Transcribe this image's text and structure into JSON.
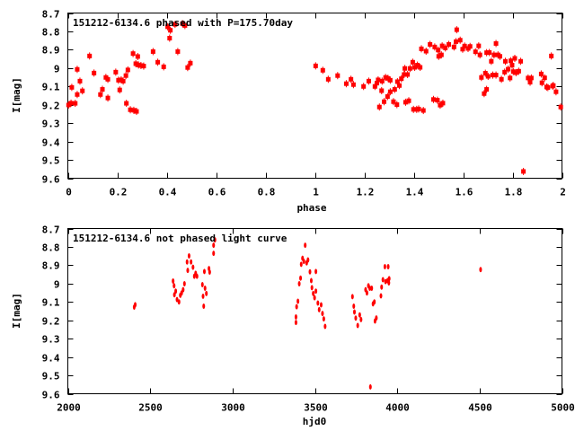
{
  "colors": {
    "points": "#ff0000",
    "axes": "#000000"
  },
  "chart_data": [
    {
      "type": "scatter",
      "title": "151212-6134.6 phased with P=175.70day",
      "xlabel": "phase",
      "ylabel": "I[mag]",
      "xlim": [
        0,
        2
      ],
      "ylim": [
        9.6,
        8.7
      ],
      "y_inverted": true,
      "grid": false,
      "xticks": [
        "0",
        "0.2",
        "0.4",
        "0.6",
        "0.8",
        "1",
        "1.2",
        "1.4",
        "1.6",
        "1.8",
        "2"
      ],
      "xtick_values": [
        0,
        0.2,
        0.4,
        0.6,
        0.8,
        1,
        1.2,
        1.4,
        1.6,
        1.8,
        2
      ],
      "yticks": [
        "8.7",
        "8.8",
        "8.9",
        "9",
        "9.1",
        "9.2",
        "9.3",
        "9.4",
        "9.5",
        "9.6"
      ],
      "ytick_values": [
        8.7,
        8.8,
        8.9,
        9.0,
        9.1,
        9.2,
        9.3,
        9.4,
        9.5,
        9.6
      ],
      "marker": "square-with-errorbar",
      "points": [
        [
          0.003,
          9.201
        ],
        [
          0.013,
          9.191
        ],
        [
          0.016,
          9.105
        ],
        [
          0.03,
          9.192
        ],
        [
          0.038,
          9.144
        ],
        [
          0.038,
          9.007
        ],
        [
          0.049,
          9.071
        ],
        [
          0.059,
          9.124
        ],
        [
          0.088,
          8.934
        ],
        [
          0.106,
          9.027
        ],
        [
          0.132,
          9.144
        ],
        [
          0.14,
          9.116
        ],
        [
          0.154,
          9.051
        ],
        [
          0.162,
          9.163
        ],
        [
          0.162,
          9.061
        ],
        [
          0.194,
          9.022
        ],
        [
          0.205,
          9.066
        ],
        [
          0.21,
          9.119
        ],
        [
          0.216,
          9.064
        ],
        [
          0.224,
          9.071
        ],
        [
          0.235,
          9.041
        ],
        [
          0.237,
          9.192
        ],
        [
          0.243,
          9.01
        ],
        [
          0.253,
          9.227
        ],
        [
          0.264,
          8.921
        ],
        [
          0.267,
          9.23
        ],
        [
          0.275,
          8.976
        ],
        [
          0.278,
          9.236
        ],
        [
          0.283,
          8.937
        ],
        [
          0.286,
          8.983
        ],
        [
          0.296,
          8.986
        ],
        [
          0.307,
          8.989
        ],
        [
          0.345,
          8.91
        ],
        [
          0.364,
          8.968
        ],
        [
          0.388,
          8.993
        ],
        [
          0.404,
          8.775
        ],
        [
          0.412,
          8.837
        ],
        [
          0.415,
          8.794
        ],
        [
          0.434,
          8.762
        ],
        [
          0.445,
          8.91
        ],
        [
          0.464,
          8.758
        ],
        [
          0.474,
          8.768
        ],
        [
          0.485,
          8.997
        ],
        [
          0.496,
          8.973
        ],
        [
          1.003,
          8.988
        ],
        [
          1.032,
          9.012
        ],
        [
          1.054,
          9.061
        ],
        [
          1.092,
          9.041
        ],
        [
          1.127,
          9.085
        ],
        [
          1.146,
          9.061
        ],
        [
          1.156,
          9.09
        ],
        [
          1.197,
          9.1
        ],
        [
          1.218,
          9.071
        ],
        [
          1.243,
          9.1
        ],
        [
          1.251,
          9.082
        ],
        [
          1.256,
          9.064
        ],
        [
          1.261,
          9.212
        ],
        [
          1.27,
          9.123
        ],
        [
          1.272,
          9.071
        ],
        [
          1.28,
          9.183
        ],
        [
          1.286,
          9.051
        ],
        [
          1.294,
          9.155
        ],
        [
          1.296,
          9.056
        ],
        [
          1.305,
          9.066
        ],
        [
          1.305,
          9.129
        ],
        [
          1.318,
          9.183
        ],
        [
          1.323,
          9.116
        ],
        [
          1.332,
          9.199
        ],
        [
          1.334,
          9.074
        ],
        [
          1.342,
          9.095
        ],
        [
          1.35,
          9.058
        ],
        [
          1.361,
          9.035
        ],
        [
          1.364,
          9.002
        ],
        [
          1.367,
          9.186
        ],
        [
          1.375,
          9.035
        ],
        [
          1.38,
          9.178
        ],
        [
          1.385,
          9.002
        ],
        [
          1.396,
          8.968
        ],
        [
          1.399,
          9.225
        ],
        [
          1.404,
          8.996
        ],
        [
          1.412,
          9.225
        ],
        [
          1.415,
          8.984
        ],
        [
          1.42,
          9.223
        ],
        [
          1.426,
          8.996
        ],
        [
          1.431,
          8.895
        ],
        [
          1.439,
          9.231
        ],
        [
          1.45,
          8.908
        ],
        [
          1.466,
          8.871
        ],
        [
          1.48,
          9.171
        ],
        [
          1.485,
          8.885
        ],
        [
          1.496,
          9.175
        ],
        [
          1.499,
          8.902
        ],
        [
          1.501,
          8.936
        ],
        [
          1.512,
          8.928
        ],
        [
          1.507,
          9.202
        ],
        [
          1.515,
          8.879
        ],
        [
          1.518,
          9.191
        ],
        [
          1.528,
          8.89
        ],
        [
          1.542,
          8.871
        ],
        [
          1.563,
          8.885
        ],
        [
          1.571,
          8.856
        ],
        [
          1.574,
          8.791
        ],
        [
          1.588,
          8.848
        ],
        [
          1.598,
          8.897
        ],
        [
          1.606,
          8.88
        ],
        [
          1.62,
          8.893
        ],
        [
          1.628,
          8.882
        ],
        [
          1.65,
          8.911
        ],
        [
          1.663,
          8.879
        ],
        [
          1.668,
          8.928
        ],
        [
          1.674,
          9.051
        ],
        [
          1.685,
          9.139
        ],
        [
          1.69,
          9.028
        ],
        [
          1.695,
          8.916
        ],
        [
          1.695,
          9.116
        ],
        [
          1.701,
          9.045
        ],
        [
          1.706,
          8.915
        ],
        [
          1.714,
          8.963
        ],
        [
          1.72,
          9.038
        ],
        [
          1.725,
          8.928
        ],
        [
          1.733,
          8.866
        ],
        [
          1.733,
          9.038
        ],
        [
          1.741,
          8.928
        ],
        [
          1.749,
          8.936
        ],
        [
          1.755,
          9.061
        ],
        [
          1.768,
          9.022
        ],
        [
          1.771,
          8.963
        ],
        [
          1.782,
          9.006
        ],
        [
          1.79,
          9.054
        ],
        [
          1.793,
          8.96
        ],
        [
          1.798,
          8.984
        ],
        [
          1.803,
          9.019
        ],
        [
          1.809,
          8.947
        ],
        [
          1.814,
          9.025
        ],
        [
          1.825,
          9.017
        ],
        [
          1.833,
          8.963
        ],
        [
          1.844,
          9.563
        ],
        [
          1.863,
          9.054
        ],
        [
          1.871,
          9.077
        ],
        [
          1.876,
          9.054
        ],
        [
          1.916,
          9.032
        ],
        [
          1.919,
          9.08
        ],
        [
          1.93,
          9.053
        ],
        [
          1.938,
          9.103
        ],
        [
          1.943,
          9.106
        ],
        [
          1.957,
          8.934
        ],
        [
          1.962,
          9.098
        ],
        [
          1.965,
          9.095
        ],
        [
          1.976,
          9.129
        ],
        [
          1.995,
          9.212
        ]
      ]
    },
    {
      "type": "scatter",
      "title": "151212-6134.6 not phased light curve",
      "xlabel": "hjd0",
      "ylabel": "I[mag]",
      "xlim": [
        2000,
        5000
      ],
      "ylim": [
        9.6,
        8.7
      ],
      "y_inverted": true,
      "grid": false,
      "xticks": [
        "2000",
        "2500",
        "3000",
        "3500",
        "4000",
        "4500",
        "5000"
      ],
      "xtick_values": [
        2000,
        2500,
        3000,
        3500,
        4000,
        4500,
        5000
      ],
      "yticks": [
        "8.7",
        "8.8",
        "8.9",
        "9",
        "9.1",
        "9.2",
        "9.3",
        "9.4",
        "9.5",
        "9.6"
      ],
      "ytick_values": [
        8.7,
        8.8,
        8.9,
        9.0,
        9.1,
        9.2,
        9.3,
        9.4,
        9.5,
        9.6
      ],
      "marker": "small-ellipse",
      "points": [
        [
          2403,
          9.128
        ],
        [
          2409,
          9.115
        ],
        [
          2639,
          8.986
        ],
        [
          2645,
          9.012
        ],
        [
          2647,
          9.061
        ],
        [
          2655,
          9.041
        ],
        [
          2663,
          9.087
        ],
        [
          2675,
          9.1
        ],
        [
          2683,
          9.064
        ],
        [
          2691,
          9.051
        ],
        [
          2700,
          9.033
        ],
        [
          2708,
          9.001
        ],
        [
          2724,
          8.882
        ],
        [
          2728,
          8.928
        ],
        [
          2736,
          8.849
        ],
        [
          2748,
          8.882
        ],
        [
          2760,
          8.911
        ],
        [
          2768,
          8.96
        ],
        [
          2776,
          8.944
        ],
        [
          2784,
          8.96
        ],
        [
          2817,
          9.006
        ],
        [
          2821,
          9.069
        ],
        [
          2825,
          9.123
        ],
        [
          2829,
          8.934
        ],
        [
          2833,
          9.025
        ],
        [
          2841,
          9.054
        ],
        [
          2857,
          8.918
        ],
        [
          2861,
          8.937
        ],
        [
          2885,
          8.835
        ],
        [
          2885,
          8.791
        ],
        [
          2893,
          8.762
        ],
        [
          3385,
          9.182
        ],
        [
          3385,
          9.212
        ],
        [
          3389,
          9.126
        ],
        [
          3397,
          9.096
        ],
        [
          3405,
          9.001
        ],
        [
          3413,
          8.97
        ],
        [
          3417,
          8.895
        ],
        [
          3425,
          8.862
        ],
        [
          3433,
          8.879
        ],
        [
          3441,
          8.791
        ],
        [
          3450,
          8.887
        ],
        [
          3458,
          8.871
        ],
        [
          3470,
          8.936
        ],
        [
          3478,
          8.984
        ],
        [
          3482,
          9.022
        ],
        [
          3490,
          9.054
        ],
        [
          3498,
          9.077
        ],
        [
          3506,
          9.041
        ],
        [
          3506,
          8.934
        ],
        [
          3518,
          9.106
        ],
        [
          3526,
          9.142
        ],
        [
          3538,
          9.116
        ],
        [
          3546,
          9.163
        ],
        [
          3554,
          9.192
        ],
        [
          3562,
          9.233
        ],
        [
          3728,
          9.071
        ],
        [
          3736,
          9.123
        ],
        [
          3740,
          9.155
        ],
        [
          3748,
          9.188
        ],
        [
          3760,
          9.228
        ],
        [
          3772,
          9.171
        ],
        [
          3780,
          9.196
        ],
        [
          3808,
          9.033
        ],
        [
          3816,
          9.051
        ],
        [
          3825,
          9.012
        ],
        [
          3833,
          9.025
        ],
        [
          3837,
          9.563
        ],
        [
          3845,
          9.025
        ],
        [
          3853,
          9.11
        ],
        [
          3861,
          9.1
        ],
        [
          3865,
          9.204
        ],
        [
          3873,
          9.187
        ],
        [
          3901,
          9.067
        ],
        [
          3905,
          9.019
        ],
        [
          3913,
          8.979
        ],
        [
          3925,
          8.908
        ],
        [
          3929,
          8.989
        ],
        [
          3941,
          8.984
        ],
        [
          3945,
          8.908
        ],
        [
          3949,
          8.996
        ],
        [
          3951,
          8.973
        ],
        [
          4506,
          8.924
        ]
      ]
    }
  ]
}
